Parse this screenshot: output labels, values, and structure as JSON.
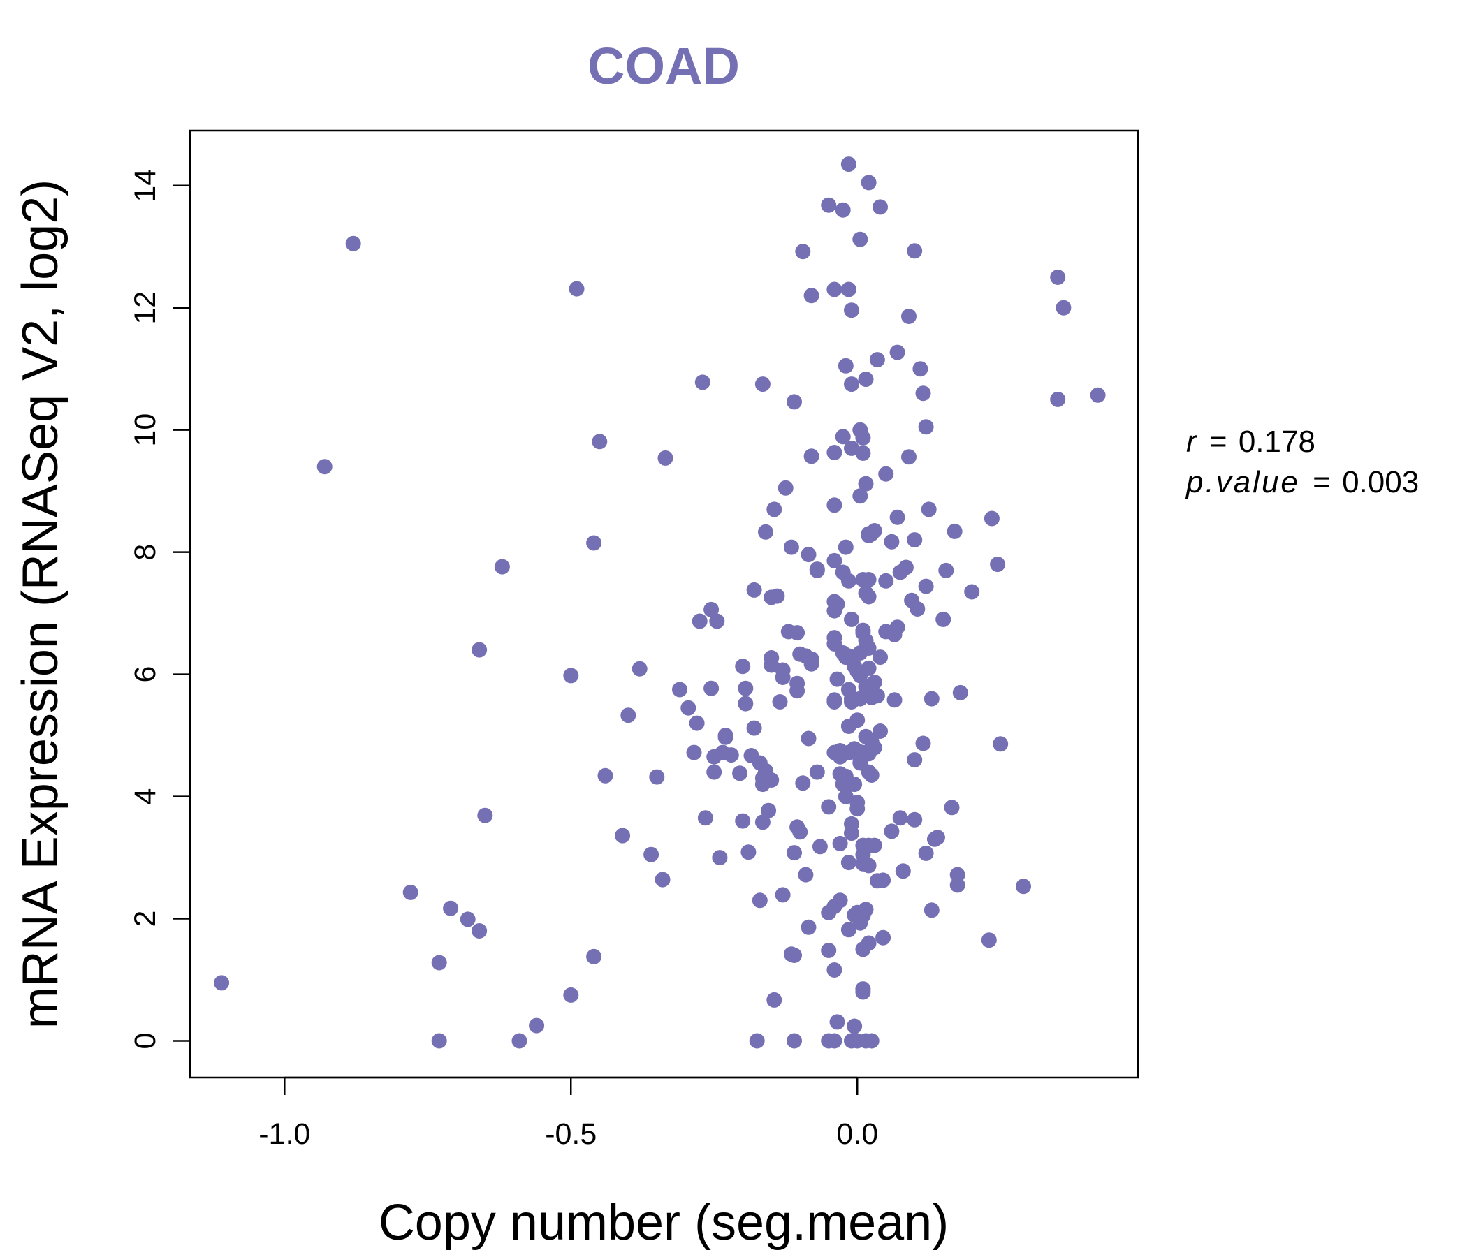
{
  "chart_data": {
    "type": "scatter",
    "title": "COAD",
    "xlabel": "Copy number (seg.mean)",
    "ylabel": "mRNA Expression (RNASeq V2, log2)",
    "xlim": [
      -1.165,
      0.49
    ],
    "ylim": [
      -0.6,
      14.9
    ],
    "x_ticks": [
      -1.0,
      -0.5,
      0.0
    ],
    "x_tick_labels": [
      "-1.0",
      "-0.5",
      "0.0"
    ],
    "y_ticks": [
      0,
      2,
      4,
      6,
      8,
      10,
      12,
      14
    ],
    "y_tick_labels": [
      "0",
      "2",
      "4",
      "6",
      "8",
      "10",
      "12",
      "14"
    ],
    "grid": false,
    "legend": "none",
    "point_color": "#7570b3",
    "annotations": {
      "r_label": "r",
      "r_value": "0.178",
      "p_label": "p.value",
      "p_value": "0.003",
      "equals": "="
    },
    "series": [
      {
        "points": [
          [
            -1.11,
            0.95
          ],
          [
            -0.93,
            9.4
          ],
          [
            -0.88,
            13.05
          ],
          [
            -0.78,
            2.43
          ],
          [
            -0.73,
            1.28
          ],
          [
            -0.73,
            0.0
          ],
          [
            -0.71,
            2.17
          ],
          [
            -0.68,
            1.99
          ],
          [
            -0.66,
            1.8
          ],
          [
            -0.66,
            6.4
          ],
          [
            -0.65,
            3.69
          ],
          [
            -0.62,
            7.76
          ],
          [
            -0.59,
            0.0
          ],
          [
            -0.56,
            0.25
          ],
          [
            -0.5,
            0.75
          ],
          [
            -0.5,
            5.98
          ],
          [
            -0.49,
            12.31
          ],
          [
            -0.46,
            8.15
          ],
          [
            -0.46,
            1.38
          ],
          [
            -0.45,
            9.81
          ],
          [
            -0.44,
            4.34
          ],
          [
            -0.41,
            3.36
          ],
          [
            -0.4,
            5.33
          ],
          [
            -0.38,
            6.09
          ],
          [
            -0.36,
            3.05
          ],
          [
            -0.35,
            4.32
          ],
          [
            -0.34,
            2.64
          ],
          [
            -0.335,
            9.54
          ],
          [
            -0.31,
            5.75
          ],
          [
            -0.295,
            5.45
          ],
          [
            -0.285,
            4.72
          ],
          [
            -0.28,
            5.2
          ],
          [
            -0.275,
            6.87
          ],
          [
            -0.27,
            10.78
          ],
          [
            -0.265,
            3.65
          ],
          [
            -0.255,
            5.77
          ],
          [
            -0.255,
            7.06
          ],
          [
            -0.25,
            4.65
          ],
          [
            -0.25,
            4.4
          ],
          [
            -0.245,
            6.87
          ],
          [
            -0.24,
            3.0
          ],
          [
            -0.235,
            4.72
          ],
          [
            -0.23,
            4.97
          ],
          [
            -0.23,
            5.0
          ],
          [
            -0.22,
            4.68
          ],
          [
            -0.205,
            4.38
          ],
          [
            -0.2,
            3.6
          ],
          [
            -0.2,
            6.13
          ],
          [
            -0.195,
            5.52
          ],
          [
            -0.195,
            5.77
          ],
          [
            -0.19,
            3.09
          ],
          [
            -0.185,
            4.67
          ],
          [
            -0.18,
            7.38
          ],
          [
            -0.18,
            5.12
          ],
          [
            -0.175,
            0.0
          ],
          [
            -0.17,
            4.55
          ],
          [
            -0.17,
            2.3
          ],
          [
            -0.165,
            3.58
          ],
          [
            -0.165,
            4.2
          ],
          [
            -0.165,
            4.3
          ],
          [
            -0.165,
            10.75
          ],
          [
            -0.16,
            8.33
          ],
          [
            -0.16,
            4.42
          ],
          [
            -0.155,
            3.77
          ],
          [
            -0.15,
            6.27
          ],
          [
            -0.15,
            6.15
          ],
          [
            -0.15,
            4.27
          ],
          [
            -0.15,
            7.26
          ],
          [
            -0.145,
            8.7
          ],
          [
            -0.145,
            0.67
          ],
          [
            -0.14,
            7.28
          ],
          [
            -0.135,
            5.55
          ],
          [
            -0.13,
            2.39
          ],
          [
            -0.13,
            5.95
          ],
          [
            -0.13,
            6.07
          ],
          [
            -0.125,
            9.05
          ],
          [
            -0.12,
            6.7
          ],
          [
            -0.115,
            8.08
          ],
          [
            -0.115,
            1.42
          ],
          [
            -0.11,
            0.0
          ],
          [
            -0.11,
            10.46
          ],
          [
            -0.11,
            3.08
          ],
          [
            -0.11,
            1.4
          ],
          [
            -0.105,
            3.5
          ],
          [
            -0.105,
            5.73
          ],
          [
            -0.105,
            5.85
          ],
          [
            -0.105,
            6.68
          ],
          [
            -0.1,
            3.42
          ],
          [
            -0.1,
            6.33
          ],
          [
            -0.095,
            12.92
          ],
          [
            -0.095,
            4.22
          ],
          [
            -0.09,
            2.72
          ],
          [
            -0.09,
            6.3
          ],
          [
            -0.085,
            1.86
          ],
          [
            -0.085,
            4.95
          ],
          [
            -0.085,
            7.96
          ],
          [
            -0.08,
            12.2
          ],
          [
            -0.08,
            9.57
          ],
          [
            -0.08,
            6.25
          ],
          [
            -0.08,
            6.17
          ],
          [
            -0.07,
            4.4
          ],
          [
            -0.07,
            7.72
          ],
          [
            -0.07,
            7.7
          ],
          [
            -0.065,
            3.18
          ],
          [
            -0.05,
            13.68
          ],
          [
            -0.05,
            3.83
          ],
          [
            -0.05,
            2.1
          ],
          [
            -0.05,
            1.48
          ],
          [
            -0.05,
            0.0
          ],
          [
            -0.04,
            0.0
          ],
          [
            -0.04,
            12.3
          ],
          [
            -0.04,
            9.63
          ],
          [
            -0.04,
            8.77
          ],
          [
            -0.04,
            7.86
          ],
          [
            -0.04,
            7.19
          ],
          [
            -0.04,
            7.04
          ],
          [
            -0.04,
            6.6
          ],
          [
            -0.04,
            6.5
          ],
          [
            -0.04,
            5.58
          ],
          [
            -0.04,
            5.55
          ],
          [
            -0.04,
            4.72
          ],
          [
            -0.04,
            2.2
          ],
          [
            -0.04,
            1.16
          ],
          [
            -0.035,
            5.92
          ],
          [
            -0.035,
            7.15
          ],
          [
            -0.035,
            0.31
          ],
          [
            -0.03,
            4.75
          ],
          [
            -0.03,
            4.65
          ],
          [
            -0.03,
            3.23
          ],
          [
            -0.03,
            2.3
          ],
          [
            -0.03,
            4.37
          ],
          [
            -0.025,
            13.6
          ],
          [
            -0.025,
            9.89
          ],
          [
            -0.025,
            7.67
          ],
          [
            -0.025,
            6.35
          ],
          [
            -0.025,
            4.2
          ],
          [
            -0.02,
            8.08
          ],
          [
            -0.02,
            11.05
          ],
          [
            -0.02,
            6.28
          ],
          [
            -0.02,
            4.0
          ],
          [
            -0.02,
            4.33
          ],
          [
            -0.02,
            4.17
          ],
          [
            -0.015,
            14.35
          ],
          [
            -0.015,
            12.3
          ],
          [
            -0.015,
            7.53
          ],
          [
            -0.015,
            6.3
          ],
          [
            -0.015,
            5.75
          ],
          [
            -0.015,
            5.15
          ],
          [
            -0.015,
            4.72
          ],
          [
            -0.015,
            2.92
          ],
          [
            -0.015,
            1.82
          ],
          [
            -0.01,
            0.0
          ],
          [
            -0.01,
            11.96
          ],
          [
            -0.01,
            10.75
          ],
          [
            -0.01,
            9.7
          ],
          [
            -0.01,
            6.9
          ],
          [
            -0.01,
            5.6
          ],
          [
            -0.01,
            5.55
          ],
          [
            -0.01,
            3.55
          ],
          [
            -0.01,
            3.4
          ],
          [
            -0.005,
            0.24
          ],
          [
            -0.005,
            4.78
          ],
          [
            -0.005,
            4.2
          ],
          [
            -0.005,
            6.13
          ],
          [
            -0.005,
            2.06
          ],
          [
            0.0,
            6.05
          ],
          [
            0.0,
            5.25
          ],
          [
            0.0,
            4.75
          ],
          [
            0.0,
            3.9
          ],
          [
            0.0,
            3.8
          ],
          [
            0.0,
            2.1
          ],
          [
            0.0,
            0.0
          ],
          [
            0.005,
            13.12
          ],
          [
            0.005,
            10.0
          ],
          [
            0.005,
            8.92
          ],
          [
            0.005,
            6.35
          ],
          [
            0.005,
            5.98
          ],
          [
            0.005,
            5.6
          ],
          [
            0.005,
            4.55
          ],
          [
            0.005,
            4.62
          ],
          [
            0.005,
            1.93
          ],
          [
            0.01,
            9.87
          ],
          [
            0.01,
            9.62
          ],
          [
            0.01,
            7.55
          ],
          [
            0.01,
            6.72
          ],
          [
            0.01,
            6.68
          ],
          [
            0.01,
            4.72
          ],
          [
            0.01,
            3.2
          ],
          [
            0.01,
            3.05
          ],
          [
            0.01,
            2.9
          ],
          [
            0.01,
            2.05
          ],
          [
            0.01,
            1.5
          ],
          [
            0.01,
            0.85
          ],
          [
            0.01,
            0.8
          ],
          [
            0.015,
            0.0
          ],
          [
            0.015,
            10.83
          ],
          [
            0.015,
            9.12
          ],
          [
            0.015,
            7.33
          ],
          [
            0.015,
            6.55
          ],
          [
            0.015,
            5.8
          ],
          [
            0.015,
            4.98
          ],
          [
            0.015,
            2.15
          ],
          [
            0.02,
            8.3
          ],
          [
            0.02,
            8.27
          ],
          [
            0.02,
            7.55
          ],
          [
            0.02,
            7.27
          ],
          [
            0.02,
            6.43
          ],
          [
            0.02,
            6.1
          ],
          [
            0.02,
            5.72
          ],
          [
            0.02,
            4.7
          ],
          [
            0.02,
            4.4
          ],
          [
            0.02,
            3.2
          ],
          [
            0.02,
            2.87
          ],
          [
            0.02,
            1.6
          ],
          [
            0.02,
            14.05
          ],
          [
            0.025,
            0.0
          ],
          [
            0.025,
            8.3
          ],
          [
            0.025,
            5.62
          ],
          [
            0.025,
            4.9
          ],
          [
            0.025,
            4.35
          ],
          [
            0.03,
            8.35
          ],
          [
            0.03,
            5.87
          ],
          [
            0.03,
            4.8
          ],
          [
            0.03,
            3.2
          ],
          [
            0.035,
            11.15
          ],
          [
            0.035,
            5.65
          ],
          [
            0.035,
            2.62
          ],
          [
            0.04,
            13.65
          ],
          [
            0.04,
            5.07
          ],
          [
            0.04,
            6.28
          ],
          [
            0.045,
            2.63
          ],
          [
            0.045,
            1.69
          ],
          [
            0.05,
            9.28
          ],
          [
            0.05,
            7.53
          ],
          [
            0.05,
            6.7
          ],
          [
            0.06,
            8.17
          ],
          [
            0.06,
            3.43
          ],
          [
            0.065,
            6.65
          ],
          [
            0.065,
            5.58
          ],
          [
            0.07,
            11.27
          ],
          [
            0.07,
            8.57
          ],
          [
            0.07,
            6.77
          ],
          [
            0.075,
            7.67
          ],
          [
            0.075,
            3.65
          ],
          [
            0.08,
            2.78
          ],
          [
            0.085,
            7.75
          ],
          [
            0.09,
            11.86
          ],
          [
            0.09,
            9.56
          ],
          [
            0.095,
            7.21
          ],
          [
            0.1,
            12.93
          ],
          [
            0.1,
            8.2
          ],
          [
            0.1,
            4.6
          ],
          [
            0.1,
            3.62
          ],
          [
            0.105,
            7.07
          ],
          [
            0.11,
            11.0
          ],
          [
            0.115,
            10.6
          ],
          [
            0.115,
            4.87
          ],
          [
            0.12,
            10.05
          ],
          [
            0.12,
            7.44
          ],
          [
            0.12,
            3.07
          ],
          [
            0.125,
            8.7
          ],
          [
            0.13,
            2.14
          ],
          [
            0.13,
            5.6
          ],
          [
            0.135,
            3.3
          ],
          [
            0.14,
            3.33
          ],
          [
            0.15,
            6.9
          ],
          [
            0.155,
            7.7
          ],
          [
            0.165,
            3.82
          ],
          [
            0.17,
            8.34
          ],
          [
            0.175,
            2.72
          ],
          [
            0.175,
            2.55
          ],
          [
            0.18,
            5.7
          ],
          [
            0.2,
            7.35
          ],
          [
            0.23,
            1.65
          ],
          [
            0.235,
            8.55
          ],
          [
            0.245,
            7.8
          ],
          [
            0.25,
            4.86
          ],
          [
            0.29,
            2.53
          ],
          [
            0.35,
            12.5
          ],
          [
            0.35,
            10.5
          ],
          [
            0.36,
            12.0
          ],
          [
            0.42,
            10.57
          ]
        ]
      }
    ]
  }
}
